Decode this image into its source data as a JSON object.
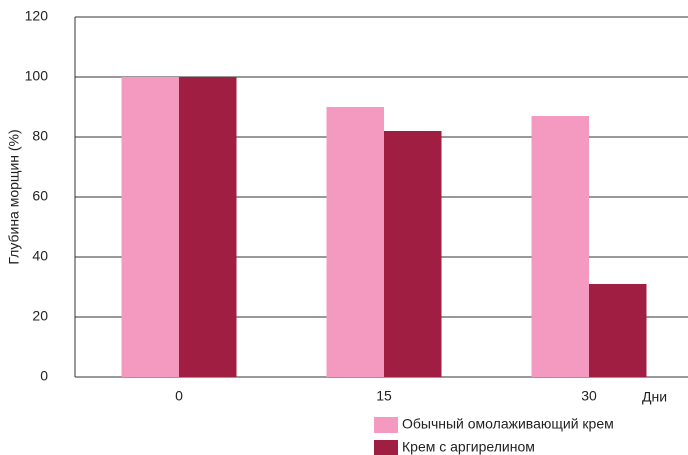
{
  "chart_data": {
    "type": "bar",
    "y_label": "Глубина морщин (%)",
    "x_label": "Дни",
    "categories": [
      "0",
      "15",
      "30"
    ],
    "series": [
      {
        "name": "Обычный омолаживающий крем",
        "color": "#f49ac1",
        "values": [
          100,
          90,
          87
        ]
      },
      {
        "name": "Крем с аргирелином",
        "color": "#a01e42",
        "values": [
          100,
          82,
          31
        ]
      }
    ],
    "ylim": [
      0,
      120
    ],
    "yticks": [
      0,
      20,
      40,
      60,
      80,
      100,
      120
    ],
    "grid": true,
    "legend": "bottom-right"
  }
}
